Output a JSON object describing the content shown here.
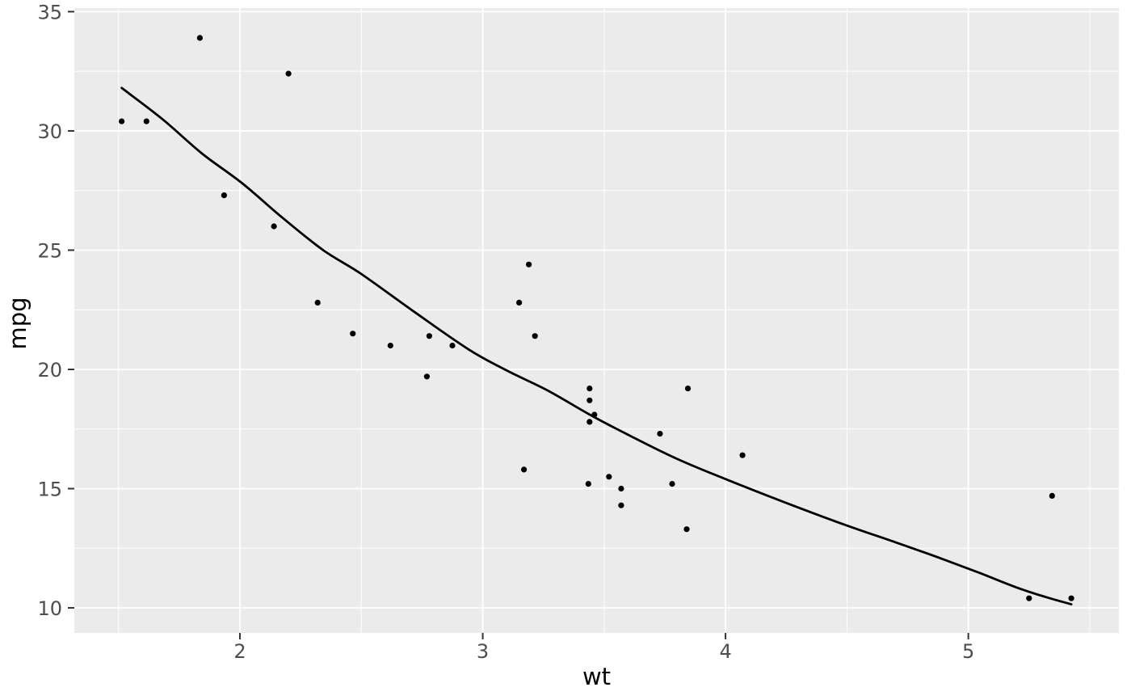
{
  "chart_data": {
    "type": "scatter",
    "title": "",
    "xlabel": "wt",
    "ylabel": "mpg",
    "xlim": [
      1.318,
      5.62
    ],
    "ylim": [
      8.95,
      35.15
    ],
    "grid": true,
    "legend": "none",
    "x_ticks": {
      "values": [
        2,
        3,
        4,
        5
      ],
      "labels": [
        "2",
        "3",
        "4",
        "5"
      ]
    },
    "y_ticks": {
      "values": [
        10,
        15,
        20,
        25,
        30,
        35
      ],
      "labels": [
        "10",
        "15",
        "20",
        "25",
        "30",
        "35"
      ]
    },
    "x_minor_ticks": [
      1.5,
      2.5,
      3.5,
      4.5,
      5.5
    ],
    "y_minor_ticks": [
      12.5,
      17.5,
      22.5,
      27.5,
      32.5
    ],
    "points": [
      [
        2.62,
        21.0
      ],
      [
        2.875,
        21.0
      ],
      [
        2.32,
        22.8
      ],
      [
        3.215,
        21.4
      ],
      [
        3.44,
        18.7
      ],
      [
        3.46,
        18.1
      ],
      [
        3.57,
        14.3
      ],
      [
        3.19,
        24.4
      ],
      [
        3.15,
        22.8
      ],
      [
        3.44,
        19.2
      ],
      [
        3.44,
        17.8
      ],
      [
        4.07,
        16.4
      ],
      [
        3.73,
        17.3
      ],
      [
        3.78,
        15.2
      ],
      [
        5.25,
        10.4
      ],
      [
        5.424,
        10.4
      ],
      [
        5.345,
        14.7
      ],
      [
        2.2,
        32.4
      ],
      [
        1.615,
        30.4
      ],
      [
        1.835,
        33.9
      ],
      [
        2.465,
        21.5
      ],
      [
        3.52,
        15.5
      ],
      [
        3.435,
        15.2
      ],
      [
        3.84,
        13.3
      ],
      [
        3.845,
        19.2
      ],
      [
        1.935,
        27.3
      ],
      [
        2.14,
        26.0
      ],
      [
        1.513,
        30.4
      ],
      [
        3.17,
        15.8
      ],
      [
        2.77,
        19.7
      ],
      [
        3.57,
        15.0
      ],
      [
        2.78,
        21.4
      ]
    ],
    "smooth_line": [
      [
        1.513,
        31.8
      ],
      [
        1.68,
        30.5
      ],
      [
        1.844,
        29.05
      ],
      [
        2.01,
        27.8
      ],
      [
        2.176,
        26.35
      ],
      [
        2.343,
        25.0
      ],
      [
        2.5,
        24.0
      ],
      [
        2.72,
        22.4
      ],
      [
        2.94,
        20.85
      ],
      [
        3.1,
        19.95
      ],
      [
        3.27,
        19.1
      ],
      [
        3.45,
        18.05
      ],
      [
        3.61,
        17.2
      ],
      [
        3.8,
        16.25
      ],
      [
        4.0,
        15.4
      ],
      [
        4.25,
        14.4
      ],
      [
        4.5,
        13.45
      ],
      [
        4.7,
        12.75
      ],
      [
        4.88,
        12.1
      ],
      [
        5.05,
        11.45
      ],
      [
        5.2,
        10.85
      ],
      [
        5.32,
        10.45
      ],
      [
        5.424,
        10.15
      ]
    ],
    "style": {
      "background": "#FFFFFF",
      "panel_bg": "#EBEBEB",
      "grid_color": "#FFFFFF",
      "point_color": "#000000",
      "line_color": "#000000",
      "tick_mark_color": "#333333",
      "tick_label_color": "#4D4D4D",
      "axis_title_color": "#000000"
    }
  }
}
